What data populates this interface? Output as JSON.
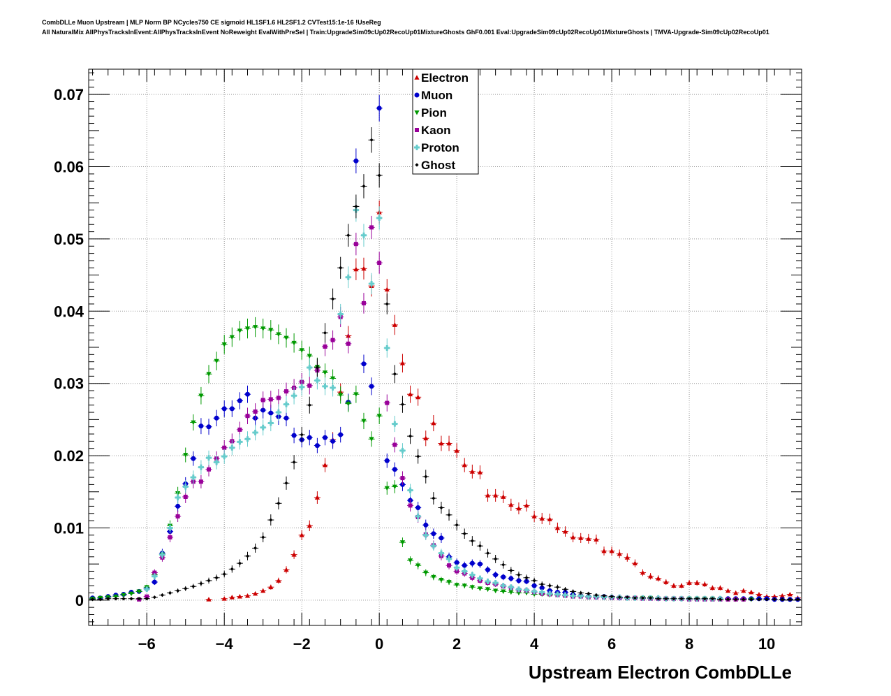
{
  "header": {
    "line1": "CombDLLe Muon Upstream | MLP Norm BP NCycles750 CE sigmoid HL1SF1.6 HL2SF1.2 CVTest15:1e-16 !UseReg",
    "line2": "All NaturalMix AllPhysTracksInEvent:AllPhysTracksInEvent NoReweight EvalWithPreSel | Train:UpgradeSim09cUp02RecoUp01MixtureGhosts GhF0.001 Eval:UpgradeSim09cUp02RecoUp01MixtureGhosts | TMVA-Upgrade-Sim09cUp02RecoUp01"
  },
  "chart_data": {
    "type": "scatter",
    "title": "",
    "xlabel": "Upstream Electron CombDLLe",
    "ylabel": "",
    "xlim": [
      -7.5,
      10.9
    ],
    "ylim": [
      -0.0035,
      0.0735
    ],
    "grid": true,
    "legend_position": "top-center",
    "x_ticks": [
      -6,
      -4,
      -2,
      0,
      2,
      4,
      6,
      8,
      10
    ],
    "x_tick_labels": [
      "−6",
      "−4",
      "−2",
      "0",
      "2",
      "4",
      "6",
      "8",
      "10"
    ],
    "y_ticks": [
      0,
      0.01,
      0.02,
      0.03,
      0.04,
      0.05,
      0.06,
      0.07
    ],
    "y_tick_labels": [
      "0",
      "0.01",
      "0.02",
      "0.03",
      "0.04",
      "0.05",
      "0.06",
      "0.07"
    ],
    "series": [
      {
        "name": "Electron",
        "color": "#cc0000",
        "marker": "triangle-up",
        "x": [
          -4.4,
          -4.0,
          -3.8,
          -3.6,
          -3.4,
          -3.2,
          -3.0,
          -2.8,
          -2.6,
          -2.4,
          -2.2,
          -2.0,
          -1.8,
          -1.6,
          -1.4,
          -1.2,
          -1.0,
          -0.8,
          -0.6,
          -0.4,
          -0.2,
          0.0,
          0.2,
          0.4,
          0.6,
          0.8,
          1.0,
          1.2,
          1.4,
          1.6,
          1.8,
          2.0,
          2.2,
          2.4,
          2.6,
          2.8,
          3.0,
          3.2,
          3.4,
          3.6,
          3.8,
          4.0,
          4.2,
          4.4,
          4.6,
          4.8,
          5.0,
          5.2,
          5.4,
          5.6,
          5.8,
          6.0,
          6.2,
          6.4,
          6.6,
          6.8,
          7.0,
          7.2,
          7.4,
          7.6,
          7.8,
          8.0,
          8.2,
          8.4,
          8.6,
          8.8,
          9.0,
          9.2,
          9.4,
          9.6,
          9.8,
          10.0,
          10.2,
          10.4,
          10.6,
          10.8
        ],
        "y": [
          0.0001,
          0.0002,
          0.0004,
          0.0005,
          0.0006,
          0.0009,
          0.0013,
          0.0018,
          0.0027,
          0.0042,
          0.0063,
          0.009,
          0.0103,
          0.0142,
          0.0187,
          0.0222,
          0.0288,
          0.0366,
          0.0458,
          0.0459,
          0.0435,
          0.0537,
          0.043,
          0.0381,
          0.0328,
          0.0285,
          0.0281,
          0.0224,
          0.0245,
          0.0217,
          0.0217,
          0.0207,
          0.0187,
          0.0178,
          0.0177,
          0.0145,
          0.0145,
          0.0143,
          0.0132,
          0.0127,
          0.0131,
          0.0116,
          0.0113,
          0.0112,
          0.01,
          0.0095,
          0.0087,
          0.0086,
          0.0085,
          0.0084,
          0.0068,
          0.0068,
          0.0064,
          0.0059,
          0.0051,
          0.0038,
          0.0033,
          0.003,
          0.0025,
          0.002,
          0.002,
          0.0024,
          0.0024,
          0.0022,
          0.0017,
          0.0017,
          0.0013,
          0.001,
          0.0013,
          0.0011,
          0.0008,
          0.0005,
          0.0005,
          0.0006,
          0.0008,
          0.0003
        ]
      },
      {
        "name": "Muon",
        "color": "#0000cc",
        "marker": "circle",
        "x": [
          -7.4,
          -7.2,
          -7.0,
          -6.8,
          -6.6,
          -6.4,
          -6.2,
          -6.0,
          -5.8,
          -5.6,
          -5.4,
          -5.2,
          -5.0,
          -4.8,
          -4.6,
          -4.4,
          -4.2,
          -4.0,
          -3.8,
          -3.6,
          -3.4,
          -3.2,
          -3.0,
          -2.8,
          -2.6,
          -2.4,
          -2.2,
          -2.0,
          -1.8,
          -1.6,
          -1.4,
          -1.2,
          -1.0,
          -0.8,
          -0.6,
          -0.4,
          -0.2,
          0.0,
          0.2,
          0.4,
          0.6,
          0.8,
          1.0,
          1.2,
          1.4,
          1.6,
          1.8,
          2.0,
          2.2,
          2.4,
          2.6,
          2.8,
          3.0,
          3.2,
          3.4,
          3.6,
          3.8,
          4.0,
          4.2,
          4.4,
          4.6,
          4.8,
          5.0,
          5.2,
          5.4,
          5.6,
          5.8,
          6.0,
          6.2,
          6.4,
          6.6,
          6.8,
          7.0,
          7.2,
          7.4,
          7.6,
          7.8,
          8.0,
          8.2,
          8.4,
          8.6,
          8.8,
          9.0,
          9.2,
          9.4,
          9.6,
          9.8,
          10.0,
          10.2,
          10.4,
          10.6,
          10.8
        ],
        "y": [
          0.0003,
          0.0003,
          0.0005,
          0.0007,
          0.0008,
          0.0011,
          0.0012,
          0.0016,
          0.0025,
          0.0065,
          0.0095,
          0.013,
          0.0161,
          0.0196,
          0.0241,
          0.024,
          0.0252,
          0.0265,
          0.0265,
          0.0276,
          0.0285,
          0.0252,
          0.0263,
          0.0259,
          0.0254,
          0.0252,
          0.0228,
          0.0222,
          0.0225,
          0.0214,
          0.0225,
          0.022,
          0.0229,
          0.0274,
          0.0608,
          0.0327,
          0.0296,
          0.0681,
          0.0193,
          0.0181,
          0.016,
          0.0138,
          0.0128,
          0.0104,
          0.0092,
          0.0086,
          0.006,
          0.0052,
          0.0048,
          0.0051,
          0.005,
          0.0042,
          0.0035,
          0.0032,
          0.003,
          0.0027,
          0.0026,
          0.002,
          0.0017,
          0.0013,
          0.0011,
          0.0011,
          0.0008,
          0.0006,
          0.0005,
          0.0004,
          0.0005,
          0.0004,
          0.0003,
          0.0003,
          0.0003,
          0.0003,
          0.0003,
          0.0002,
          0.0002,
          0.0002,
          0.0002,
          0.0002,
          0.0002,
          0.0002,
          0.0002,
          0.0002,
          0.0002,
          0.0002,
          0.0002,
          0.0002,
          0.0002,
          0.0002,
          0.0001,
          0.0001,
          0.0001,
          0.0001
        ]
      },
      {
        "name": "Pion",
        "color": "#009900",
        "marker": "triangle-down",
        "x": [
          -7.4,
          -7.2,
          -7.0,
          -6.8,
          -6.6,
          -6.4,
          -6.2,
          -6.0,
          -5.8,
          -5.6,
          -5.4,
          -5.2,
          -5.0,
          -4.8,
          -4.6,
          -4.4,
          -4.2,
          -4.0,
          -3.8,
          -3.6,
          -3.4,
          -3.2,
          -3.0,
          -2.8,
          -2.6,
          -2.4,
          -2.2,
          -2.0,
          -1.8,
          -1.6,
          -1.4,
          -1.2,
          -1.0,
          -0.8,
          -0.6,
          -0.4,
          -0.2,
          0.0,
          0.2,
          0.4,
          0.6,
          0.8,
          1.0,
          1.2,
          1.4,
          1.6,
          1.8,
          2.0,
          2.2,
          2.4,
          2.6,
          2.8,
          3.0,
          3.2,
          3.4,
          3.6,
          3.8,
          4.0,
          4.2,
          4.4,
          4.6,
          4.8,
          5.0,
          5.2,
          5.4,
          5.6,
          5.8,
          6.0,
          6.2,
          6.4,
          6.6,
          6.8,
          7.0,
          7.2,
          7.4,
          7.6,
          7.8,
          8.0,
          8.2,
          8.4,
          8.6,
          8.8,
          9.0,
          9.2,
          9.4,
          9.6
        ],
        "y": [
          0.0002,
          0.0003,
          0.0004,
          0.0005,
          0.0007,
          0.0009,
          0.0012,
          0.0018,
          0.0035,
          0.0063,
          0.0103,
          0.0148,
          0.0201,
          0.0246,
          0.0283,
          0.0313,
          0.0331,
          0.0354,
          0.0364,
          0.0373,
          0.0376,
          0.0378,
          0.0376,
          0.0374,
          0.0368,
          0.0363,
          0.0356,
          0.0346,
          0.0338,
          0.0323,
          0.0315,
          0.0307,
          0.0284,
          0.0272,
          0.0285,
          0.0248,
          0.0223,
          0.0255,
          0.0155,
          0.0157,
          0.008,
          0.0055,
          0.0048,
          0.0038,
          0.0032,
          0.0028,
          0.0025,
          0.0021,
          0.002,
          0.0018,
          0.0016,
          0.0015,
          0.0013,
          0.0012,
          0.0011,
          0.001,
          0.001,
          0.0008,
          0.0008,
          0.0007,
          0.0007,
          0.0006,
          0.0005,
          0.0005,
          0.0004,
          0.0004,
          0.0004,
          0.0003,
          0.0003,
          0.0003,
          0.0003,
          0.0003,
          0.0003,
          0.0002,
          0.0002,
          0.0002,
          0.0002,
          0.0002,
          0.0002,
          0.0002,
          0.0002,
          0.0001,
          0.0001,
          0.0001,
          0.0001,
          0.0001
        ]
      },
      {
        "name": "Kaon",
        "color": "#990099",
        "marker": "square",
        "x": [
          -6.2,
          -6.0,
          -5.8,
          -5.6,
          -5.4,
          -5.2,
          -5.0,
          -4.8,
          -4.6,
          -4.4,
          -4.2,
          -4.0,
          -3.8,
          -3.6,
          -3.4,
          -3.2,
          -3.0,
          -2.8,
          -2.6,
          -2.4,
          -2.2,
          -2.0,
          -1.8,
          -1.6,
          -1.4,
          -1.2,
          -1.0,
          -0.8,
          -0.6,
          -0.4,
          -0.2,
          0.0,
          0.2,
          0.4,
          0.6,
          0.8,
          1.0,
          1.2,
          1.4,
          1.6,
          1.8,
          2.0,
          2.2,
          2.4,
          2.6,
          2.8,
          3.0,
          3.2,
          3.4,
          3.6,
          3.8,
          4.0,
          4.2,
          4.4,
          4.6,
          4.8,
          5.0,
          5.2,
          5.4,
          5.6,
          5.8,
          6.0,
          6.2,
          6.4,
          6.6,
          6.8,
          7.0,
          7.2,
          7.4,
          7.6,
          7.8,
          8.0,
          8.2,
          8.4,
          8.6,
          8.8,
          9.0,
          9.2,
          9.4
        ],
        "y": [
          0.0001,
          0.0005,
          0.0038,
          0.0059,
          0.0087,
          0.0116,
          0.0143,
          0.0164,
          0.0164,
          0.0181,
          0.0196,
          0.0211,
          0.022,
          0.0236,
          0.0255,
          0.0261,
          0.0277,
          0.0278,
          0.028,
          0.0289,
          0.0294,
          0.0302,
          0.0297,
          0.0318,
          0.0351,
          0.036,
          0.0392,
          0.0355,
          0.0493,
          0.0411,
          0.0516,
          0.0467,
          0.0273,
          0.0215,
          0.0169,
          0.0131,
          0.0115,
          0.0091,
          0.0076,
          0.0061,
          0.0048,
          0.004,
          0.0037,
          0.0031,
          0.0027,
          0.0024,
          0.0022,
          0.0019,
          0.0017,
          0.0014,
          0.0013,
          0.0011,
          0.0009,
          0.0008,
          0.0007,
          0.0006,
          0.0005,
          0.0005,
          0.0004,
          0.0004,
          0.0004,
          0.0003,
          0.0003,
          0.0003,
          0.0003,
          0.0002,
          0.0002,
          0.0002,
          0.0002,
          0.0002,
          0.0002,
          0.0001,
          0.0001,
          0.0001,
          0.0001,
          0.0001,
          0.0001,
          0.0001,
          0.0001
        ]
      },
      {
        "name": "Proton",
        "color": "#66cccc",
        "marker": "cross",
        "x": [
          -6.0,
          -5.8,
          -5.6,
          -5.4,
          -5.2,
          -5.0,
          -4.8,
          -4.6,
          -4.4,
          -4.2,
          -4.0,
          -3.8,
          -3.6,
          -3.4,
          -3.2,
          -3.0,
          -2.8,
          -2.6,
          -2.4,
          -2.2,
          -2.0,
          -1.8,
          -1.6,
          -1.4,
          -1.2,
          -1.0,
          -0.8,
          -0.6,
          -0.4,
          -0.2,
          0.0,
          0.2,
          0.4,
          0.6,
          0.8,
          1.0,
          1.2,
          1.4,
          1.6,
          1.8,
          2.0,
          2.2,
          2.4,
          2.6,
          2.8,
          3.0,
          3.2,
          3.4,
          3.6,
          3.8,
          4.0,
          4.2,
          4.4,
          4.6,
          4.8,
          5.0,
          5.2,
          5.4,
          5.6,
          5.8,
          6.0,
          6.2,
          6.4,
          6.6,
          6.8,
          7.0,
          7.2,
          7.4,
          7.6,
          7.8,
          8.0,
          8.2,
          8.4,
          8.6,
          8.8
        ],
        "y": [
          0.0015,
          0.0033,
          0.0063,
          0.01,
          0.0142,
          0.0157,
          0.017,
          0.0184,
          0.0197,
          0.0191,
          0.0199,
          0.0211,
          0.0219,
          0.0223,
          0.0232,
          0.0239,
          0.0245,
          0.026,
          0.0271,
          0.0283,
          0.0295,
          0.0322,
          0.0304,
          0.0296,
          0.0294,
          0.0396,
          0.0447,
          0.054,
          0.0505,
          0.0438,
          0.0529,
          0.0349,
          0.0244,
          0.0207,
          0.0152,
          0.0116,
          0.009,
          0.0075,
          0.0065,
          0.0057,
          0.0045,
          0.004,
          0.0035,
          0.003,
          0.0026,
          0.0024,
          0.002,
          0.0018,
          0.0015,
          0.0014,
          0.0012,
          0.0011,
          0.0009,
          0.0008,
          0.0007,
          0.0006,
          0.0006,
          0.0005,
          0.0005,
          0.0004,
          0.0004,
          0.0004,
          0.0003,
          0.0003,
          0.0003,
          0.0003,
          0.0003,
          0.0002,
          0.0002,
          0.0002,
          0.0002,
          0.0002,
          0.0002,
          0.0002,
          0.0002
        ]
      },
      {
        "name": "Ghost",
        "color": "#000000",
        "marker": "diamond",
        "x": [
          -7.4,
          -7.2,
          -7.0,
          -6.8,
          -6.6,
          -6.4,
          -6.2,
          -6.0,
          -5.8,
          -5.6,
          -5.4,
          -5.2,
          -5.0,
          -4.8,
          -4.6,
          -4.4,
          -4.2,
          -4.0,
          -3.8,
          -3.6,
          -3.4,
          -3.2,
          -3.0,
          -2.8,
          -2.6,
          -2.4,
          -2.2,
          -2.0,
          -1.8,
          -1.6,
          -1.4,
          -1.2,
          -1.0,
          -0.8,
          -0.6,
          -0.4,
          -0.2,
          0.0,
          0.2,
          0.4,
          0.6,
          0.8,
          1.0,
          1.2,
          1.4,
          1.6,
          1.8,
          2.0,
          2.2,
          2.4,
          2.6,
          2.8,
          3.0,
          3.2,
          3.4,
          3.6,
          3.8,
          4.0,
          4.2,
          4.4,
          4.6,
          4.8,
          5.0,
          5.2,
          5.4,
          5.6,
          5.8,
          6.0,
          6.2,
          6.4,
          6.6,
          6.8,
          7.0,
          7.2,
          7.4,
          7.6,
          7.8,
          8.0,
          8.2,
          8.4,
          8.6,
          8.8,
          9.0,
          9.2,
          9.4,
          9.6,
          9.8,
          10.0,
          10.2,
          10.4,
          10.6,
          10.8
        ],
        "y": [
          0.0001,
          0.0001,
          0.0002,
          0.0002,
          0.0002,
          0.0002,
          0.0002,
          0.0002,
          0.0004,
          0.0007,
          0.001,
          0.0013,
          0.0016,
          0.0019,
          0.0023,
          0.0027,
          0.0031,
          0.0036,
          0.0043,
          0.0051,
          0.0061,
          0.0072,
          0.0087,
          0.0111,
          0.0134,
          0.0162,
          0.0191,
          0.0229,
          0.027,
          0.0322,
          0.037,
          0.0417,
          0.046,
          0.0505,
          0.0545,
          0.0573,
          0.0637,
          0.0588,
          0.041,
          0.0313,
          0.0271,
          0.0227,
          0.0199,
          0.0171,
          0.0141,
          0.0128,
          0.0118,
          0.0104,
          0.0092,
          0.0082,
          0.0075,
          0.0065,
          0.0057,
          0.0049,
          0.0041,
          0.0035,
          0.0031,
          0.0027,
          0.0022,
          0.002,
          0.0018,
          0.0015,
          0.0012,
          0.001,
          0.0009,
          0.0007,
          0.0006,
          0.0005,
          0.0004,
          0.0004,
          0.0003,
          0.0003,
          0.0003,
          0.0002,
          0.0002,
          0.0002,
          0.0002,
          0.0002,
          0.0002,
          0.0002,
          0.0002,
          0.0001,
          0.0001,
          0.0001,
          0.0001,
          0.0001,
          0.0001,
          0.0001,
          0.0001,
          0.0001,
          0.0001,
          0.0001
        ]
      }
    ]
  }
}
